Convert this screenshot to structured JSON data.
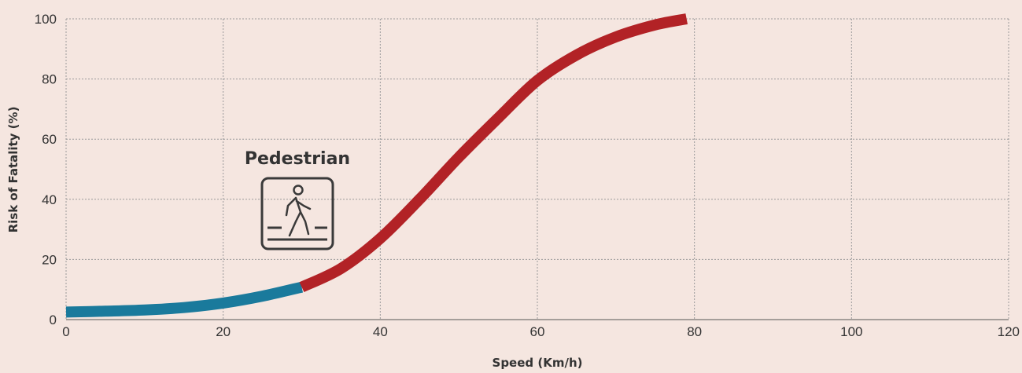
{
  "chart_data": {
    "type": "line",
    "xlabel": "Speed (Km/h)",
    "ylabel": "Risk of Fatality (%)",
    "xlim": [
      0,
      120
    ],
    "ylim": [
      0,
      100
    ],
    "x_ticks": [
      0,
      20,
      40,
      60,
      80,
      100,
      120
    ],
    "y_ticks": [
      0,
      20,
      40,
      60,
      80,
      100
    ],
    "grid": true,
    "series": [
      {
        "color": "#1a7a9c",
        "x": [
          0,
          5,
          10,
          15,
          20,
          25,
          30
        ],
        "y": [
          2.5,
          2.8,
          3.2,
          4.0,
          5.5,
          7.8,
          10.8
        ]
      },
      {
        "color": "#b22226",
        "x": [
          30,
          35,
          40,
          45,
          50,
          55,
          60,
          65,
          70,
          75,
          79
        ],
        "y": [
          10.8,
          17.0,
          27.0,
          40.0,
          54.0,
          67.0,
          79.5,
          88.0,
          94.0,
          98.0,
          100.0
        ]
      }
    ],
    "annotation": {
      "label": "Pedestrian",
      "icon": "pedestrian-crossing-icon"
    }
  }
}
